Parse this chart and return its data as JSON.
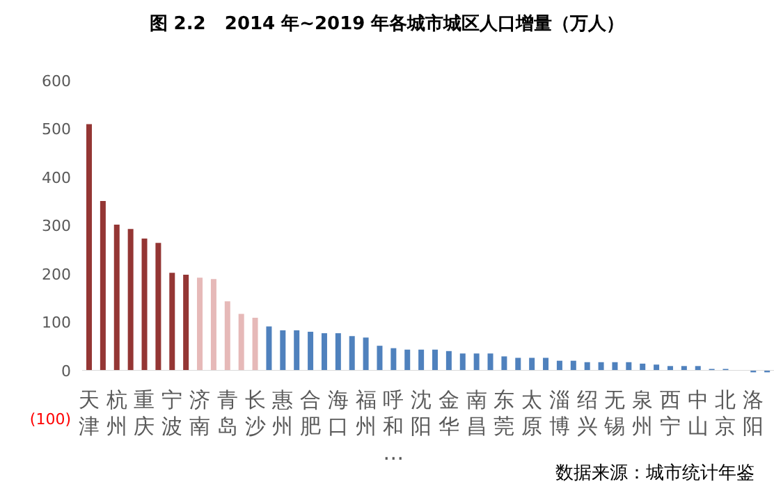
{
  "chart_data": {
    "type": "bar",
    "title": "图 2.2   2014 年~2019 年各城市城区人口增量（万人）",
    "categories": [
      "天津",
      null,
      "杭州",
      null,
      "重庆",
      null,
      "宁波",
      null,
      "济南",
      null,
      "青岛",
      null,
      "长沙",
      null,
      "惠州",
      null,
      "合肥",
      null,
      "海口",
      null,
      "福州",
      null,
      "呼和…",
      null,
      "沈阳",
      null,
      "金华",
      null,
      "南昌",
      null,
      "东莞",
      null,
      "太原",
      null,
      "淄博",
      null,
      "绍兴",
      null,
      "无锡",
      null,
      "泉州",
      null,
      "西宁",
      null,
      "中山",
      null,
      "北京",
      null,
      "洛阳",
      null
    ],
    "values": [
      510,
      351,
      302,
      293,
      273,
      264,
      202,
      198,
      192,
      189,
      143,
      117,
      109,
      91,
      83,
      83,
      80,
      77,
      77,
      71,
      68,
      51,
      46,
      43,
      43,
      43,
      40,
      35,
      35,
      35,
      29,
      26,
      26,
      26,
      20,
      20,
      17,
      17,
      17,
      17,
      14,
      12,
      9,
      9,
      9,
      3,
      3,
      0,
      -4,
      -4
    ],
    "colors": [
      "#943634",
      "#943634",
      "#943634",
      "#943634",
      "#943634",
      "#943634",
      "#943634",
      "#943634",
      "#e6b9b8",
      "#e6b9b8",
      "#e6b9b8",
      "#e6b9b8",
      "#e6b9b8",
      "#4f81bd",
      "#4f81bd",
      "#4f81bd",
      "#4f81bd",
      "#4f81bd",
      "#4f81bd",
      "#4f81bd",
      "#4f81bd",
      "#4f81bd",
      "#4f81bd",
      "#4f81bd",
      "#4f81bd",
      "#4f81bd",
      "#4f81bd",
      "#4f81bd",
      "#4f81bd",
      "#4f81bd",
      "#4f81bd",
      "#4f81bd",
      "#4f81bd",
      "#4f81bd",
      "#4f81bd",
      "#4f81bd",
      "#4f81bd",
      "#4f81bd",
      "#4f81bd",
      "#4f81bd",
      "#4f81bd",
      "#4f81bd",
      "#4f81bd",
      "#4f81bd",
      "#4f81bd",
      "#4f81bd",
      "#4f81bd",
      "#4f81bd",
      "#4f81bd",
      "#4f81bd"
    ],
    "ylim": [
      -100,
      600
    ],
    "yticks": [
      {
        "value": -100,
        "label": "(100)"
      },
      0,
      100,
      200,
      300,
      400,
      500,
      600
    ],
    "grid": false,
    "legend": false,
    "annotations": [
      "数据来源：城市统计年鉴"
    ]
  }
}
